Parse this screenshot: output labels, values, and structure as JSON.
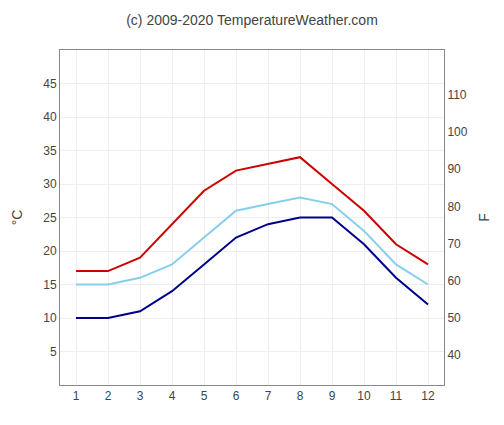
{
  "chart_data": {
    "type": "line",
    "title": "(c) 2009-2020 TemperatureWeather.com",
    "ylabel": "°C",
    "y2label": "F",
    "x": [
      1,
      2,
      3,
      4,
      5,
      6,
      7,
      8,
      9,
      10,
      11,
      12
    ],
    "xlim": [
      0.5,
      12.5
    ],
    "xticks": [
      1,
      2,
      3,
      4,
      5,
      6,
      7,
      8,
      9,
      10,
      11,
      12
    ],
    "ylim": [
      0,
      50
    ],
    "yticks": [
      5,
      10,
      15,
      20,
      25,
      30,
      35,
      40,
      45
    ],
    "y2lim": [
      32,
      122
    ],
    "y2ticks": [
      40,
      50,
      60,
      70,
      80,
      90,
      100,
      110
    ],
    "grid": true,
    "series": [
      {
        "color": "#cc0000",
        "values": [
          17,
          17,
          19,
          24,
          29,
          32,
          33,
          34,
          30,
          26,
          21,
          18
        ]
      },
      {
        "color": "#00008B",
        "values": [
          10,
          10,
          11,
          14,
          18,
          22,
          24,
          25,
          25,
          21,
          16,
          12
        ]
      },
      {
        "color": "#87CEEB",
        "values": [
          15,
          15,
          16,
          18,
          22,
          26,
          27,
          28,
          27,
          23,
          18,
          15
        ]
      }
    ]
  }
}
